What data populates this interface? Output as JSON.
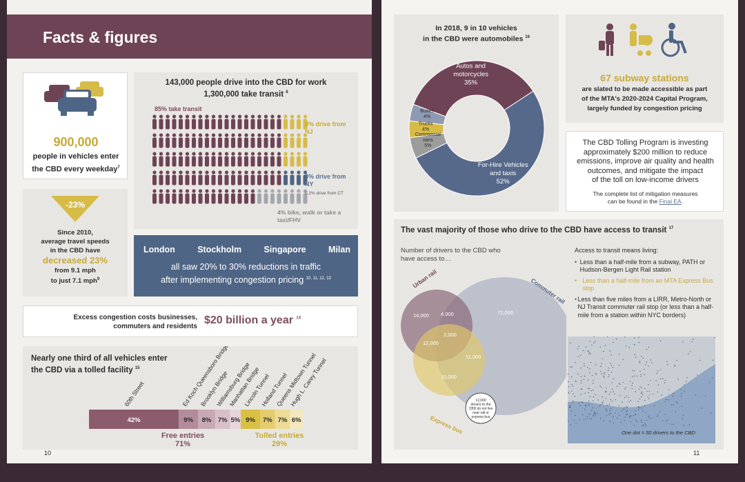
{
  "colors": {
    "maroon": "#6e4355",
    "gold": "#d6bb47",
    "slate": "#4f6585",
    "gray": "#a3a7ad",
    "light_gray": "#e8e6e3"
  },
  "header": {
    "title": "Facts & figures"
  },
  "vehicles_card": {
    "icon": "cars-icon",
    "number": "900,000",
    "text": "people in vehicles enter the CBD every weekday",
    "footnote": "7"
  },
  "speed_card": {
    "badge": "-23%",
    "line1": "Since 2010,",
    "line2": "average travel speeds",
    "line3": "in the CBD have",
    "highlight": "decreased 23%",
    "line4": "from 9.1 mph",
    "line5": "to just 7.1 mph",
    "footnote": "9"
  },
  "commute_card": {
    "title_line1": "143,000 people drive into the CBD for work",
    "title_line2": "1,300,000 take transit",
    "title_footnote": "8",
    "transit_label": "85% take transit",
    "nj_label": "8% drive from NJ",
    "ny_label": "3% drive from NY",
    "ct_label": "0.2% drive from CT",
    "bike_label": "4% bike, walk or take a taxi/FHV"
  },
  "cities_card": {
    "cities": [
      "London",
      "Stockholm",
      "Singapore",
      "Milan"
    ],
    "line1": "all saw 20% to 30% reductions in traffic",
    "line2": "after implementing congestion pricing",
    "footnote": "10, 11, 12, 13"
  },
  "cost_card": {
    "text_line1": "Excess congestion costs businesses,",
    "text_line2": "commuters and residents",
    "amount": "$20 billion a year",
    "footnote": "14"
  },
  "tolled_chart": {
    "title_line1": "Nearly one third of all vehicles enter",
    "title_line2": "the CBD via a tolled facility",
    "title_footnote": "15",
    "free_label": "Free entries",
    "free_pct": "71%",
    "tolled_label": "Tolled entries",
    "tolled_pct": "29%"
  },
  "chart_data": [
    {
      "type": "bar",
      "orientation": "stacked-horizontal",
      "categories": [
        "60th Street",
        "Ed Koch Queensboro Bridge",
        "Brooklyn Bridge",
        "Williamsburg Bridge",
        "Manhattan Bridge",
        "Lincoln Tunnel",
        "Holland Tunnel",
        "Queens Midtown Tunnel",
        "Hugh L. Carey Tunnel"
      ],
      "values": [
        42,
        9,
        8,
        7,
        5,
        9,
        7,
        7,
        6
      ],
      "labels": [
        "42%",
        "9%",
        "8%",
        "7%",
        "5%",
        "9%",
        "7%",
        "7%",
        "6%"
      ],
      "groups": [
        "free",
        "free",
        "free",
        "free",
        "free",
        "tolled",
        "tolled",
        "tolled",
        "tolled"
      ],
      "colors": [
        "#8c5c6d",
        "#b28c9a",
        "#c8a8b3",
        "#d8c0c8",
        "#e6d6dc",
        "#d9bf44",
        "#e3cd6f",
        "#ecdc97",
        "#f3e8bf"
      ]
    },
    {
      "type": "pie",
      "title_line1": "In 2018, 9 in 10 vehicles",
      "title_line2": "in the CBD were automobiles",
      "title_footnote": "16",
      "categories": [
        "Autos and motorcycles",
        "For-Hire Vehicles and taxis",
        "Commercial vans",
        "Trucks",
        "Buses"
      ],
      "values": [
        35,
        52,
        5,
        4,
        4
      ],
      "labels": [
        "35%",
        "52%",
        "5%",
        "4%",
        "4%"
      ],
      "colors": [
        "#6e4355",
        "#56698a",
        "#9c9c9c",
        "#d6bb47",
        "#8e9ab2"
      ]
    },
    {
      "type": "venn",
      "title": "The vast majority of those who drive to the CBD have access to transit",
      "title_footnote": "17",
      "subtitle": "Number of drivers to the CBD who have access to…",
      "sets": [
        "Urban rail",
        "Commuter rail",
        "Express bus"
      ],
      "regions": [
        {
          "sets": [
            "Urban rail"
          ],
          "value": "14,000"
        },
        {
          "sets": [
            "Urban rail",
            "Commuter rail"
          ],
          "value": "4,000"
        },
        {
          "sets": [
            "Commuter rail"
          ],
          "value": "72,000"
        },
        {
          "sets": [
            "Urban rail",
            "Commuter rail",
            "Express bus"
          ],
          "value": "2,000"
        },
        {
          "sets": [
            "Urban rail",
            "Express bus"
          ],
          "value": "12,000"
        },
        {
          "sets": [
            "Commuter rail",
            "Express bus"
          ],
          "value": "11,000"
        },
        {
          "sets": [
            "Express bus"
          ],
          "value": "10,000"
        }
      ],
      "outside_note": "12,000 drivers to the CBD do not live near rail or express bus"
    }
  ],
  "subway_card": {
    "icon": "accessibility-icons",
    "highlight": "67 subway stations",
    "line1": "are slated to be made accessible as part",
    "line2": "of the MTA's 2020-2024 Capital Program,",
    "line3": "largely funded by congestion pricing"
  },
  "tolling_card": {
    "line1": "The CBD Tolling Program is investing",
    "line2": "approximately $200 million to reduce",
    "line3": "emissions, improve air quality and health",
    "line4": "outcomes, and mitigate the impact",
    "line5": "of the toll on low-income drivers",
    "small1": "The complete list of mitigation measures",
    "small2": "can be found in the",
    "link": "Final EA",
    "small_end": "."
  },
  "access_list": {
    "heading": "Access to transit means living:",
    "items": [
      "Less than a half-mile from a subway, PATH or Hudson-Bergen Light Rail station",
      "Less than a half-mile from an MTA Express Bus stop",
      "Less than five miles from a LIRR, Metro-North or NJ Transit commuter rail stop (or less than a half-mile from a station within NYC borders)"
    ]
  },
  "map": {
    "caption": "One dot = 50 drivers to the CBD"
  },
  "page_numbers": {
    "left": "10",
    "right": "11"
  }
}
